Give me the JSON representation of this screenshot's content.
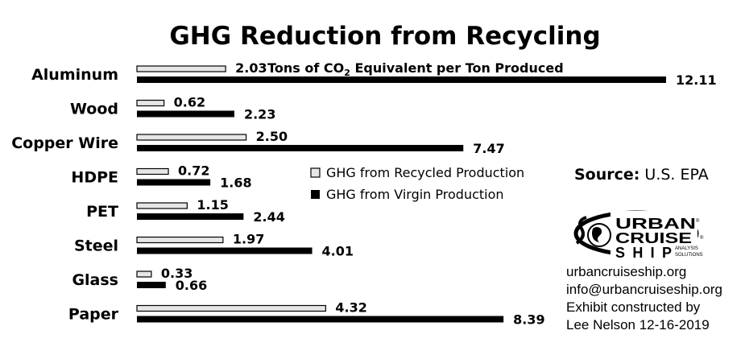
{
  "chart_data": {
    "type": "bar",
    "orientation": "horizontal",
    "title": "GHG Reduction from Recycling",
    "categories": [
      "Aluminum",
      "Wood",
      "Copper Wire",
      "HDPE",
      "PET",
      "Steel",
      "Glass",
      "Paper"
    ],
    "series": [
      {
        "name": "GHG from Recycled Production",
        "values": [
          2.03,
          0.62,
          2.5,
          0.72,
          1.15,
          1.97,
          0.33,
          4.32
        ],
        "color": "#e6e6e6"
      },
      {
        "name": "GHG from Virgin Production",
        "values": [
          12.11,
          2.23,
          7.47,
          1.68,
          2.44,
          4.01,
          0.66,
          8.39
        ],
        "color": "#000000"
      }
    ],
    "value_labels": {
      "recycled": [
        "2.03",
        "0.62",
        "2.50",
        "0.72",
        "1.15",
        "1.97",
        "0.33",
        "4.32"
      ],
      "virgin": [
        "12.11",
        "2.23",
        "7.47",
        "1.68",
        "2.44",
        "4.01",
        "0.66",
        "8.39"
      ]
    },
    "annotation": {
      "text": "Tons of CO",
      "subscript": "2",
      "suffix": " Equivalent per Ton Produced"
    },
    "xlim": [
      0,
      12.11
    ],
    "grid": false,
    "legend_position": "center"
  },
  "source": {
    "label": "Source:",
    "value": " U.S. EPA"
  },
  "logo": {
    "line1": "URBAN",
    "line2": "CRUISE",
    "line3": "SHIP",
    "sub1": "ANALYSIS",
    "sub2": "SOLUTIONS",
    "mark": "®"
  },
  "credits": [
    "urbancruiseship.org",
    "info@urbancruiseship.org",
    "Exhibit constructed by",
    "Lee Nelson 12-16-2019"
  ]
}
